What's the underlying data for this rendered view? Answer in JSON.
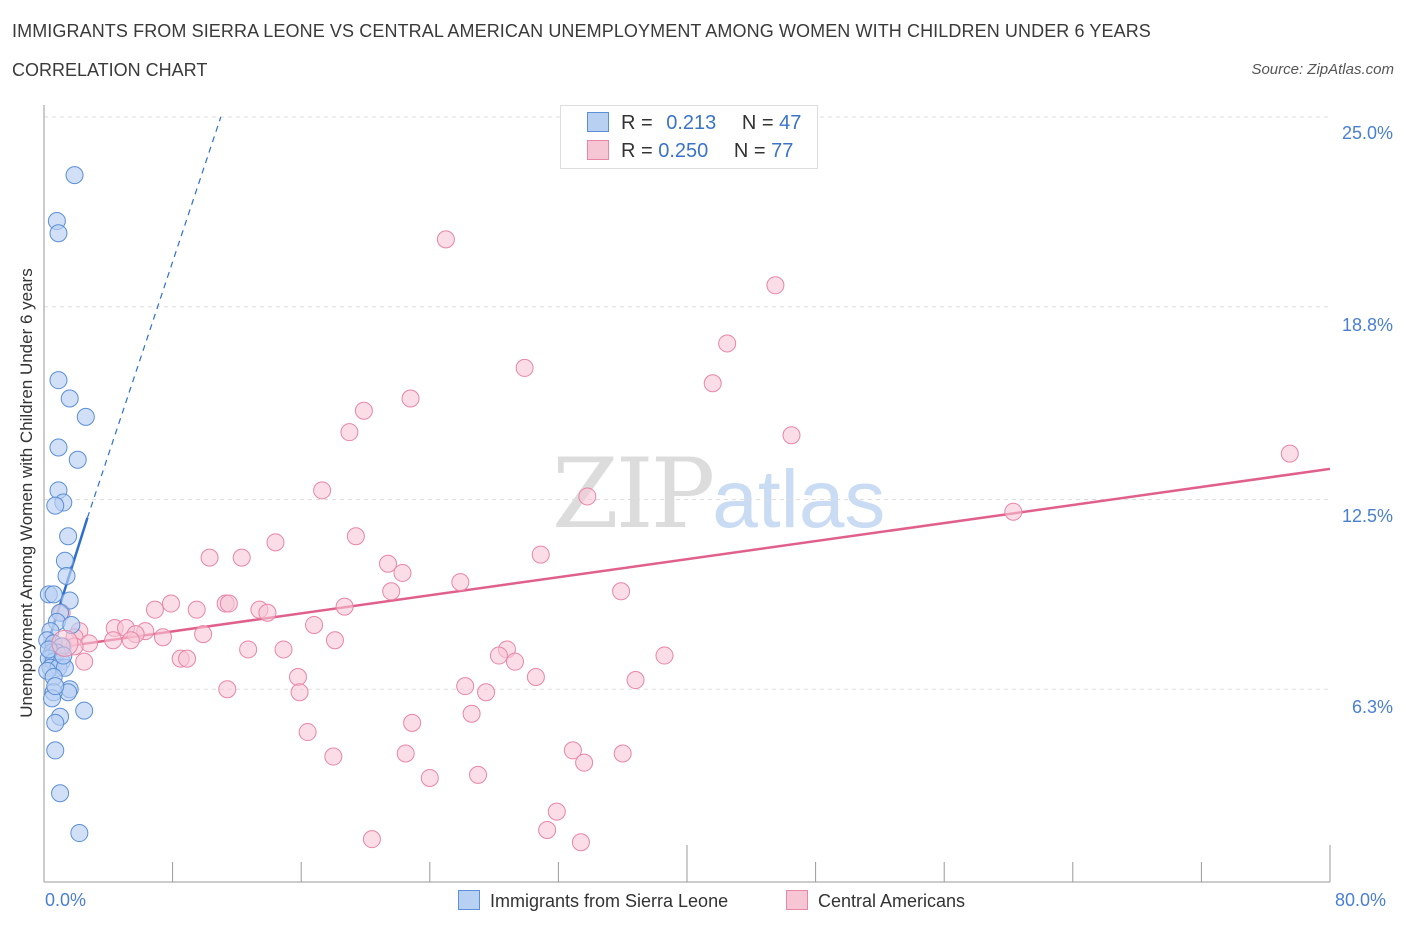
{
  "header": {
    "title": "IMMIGRANTS FROM SIERRA LEONE VS CENTRAL AMERICAN UNEMPLOYMENT AMONG WOMEN WITH CHILDREN UNDER 6 YEARS",
    "subtitle": "CORRELATION CHART",
    "source": "Source: ZipAtlas.com"
  },
  "watermark": {
    "zip": "ZIP",
    "atlas": "atlas"
  },
  "legend_top": {
    "rows": [
      {
        "r_label": "R =",
        "r_value": "0.213",
        "n_label": "N =",
        "n_value": "47"
      },
      {
        "r_label": "R =",
        "r_value": "0.250",
        "n_label": "N =",
        "n_value": "77"
      }
    ]
  },
  "legend_bottom": {
    "items": [
      {
        "label": "Immigrants from Sierra Leone"
      },
      {
        "label": "Central Americans"
      }
    ]
  },
  "colors": {
    "blue_fill": "#b8d0f2",
    "blue_stroke": "#5b8fd6",
    "blue_line": "#2d6fd1",
    "pink_fill": "#f7c6d5",
    "pink_stroke": "#e886a6",
    "pink_line": "#e0608b",
    "grid": "#dddddd",
    "tick_label": "#4a7fd0"
  },
  "chart_data": {
    "type": "scatter",
    "title": "IMMIGRANTS FROM SIERRA LEONE VS CENTRAL AMERICAN UNEMPLOYMENT AMONG WOMEN WITH CHILDREN UNDER 6 YEARS",
    "ylabel": "Unemployment Among Women with Children Under 6 years",
    "xlabel": "",
    "xlim": [
      0,
      80
    ],
    "ylim": [
      0,
      25
    ],
    "x_tick_labels": [
      "0.0%",
      "80.0%"
    ],
    "y_ticks": [
      6.3,
      12.5,
      18.8,
      25.0
    ],
    "y_tick_labels": [
      "6.3%",
      "12.5%",
      "18.8%",
      "25.0%"
    ],
    "grid": true,
    "legend_position": "top-center",
    "series": [
      {
        "name": "Immigrants from Sierra Leone",
        "R": 0.213,
        "N": 47,
        "trend": {
          "x0": 0.0,
          "y0": 7.4,
          "x1": 2.7,
          "y1": 11.9,
          "dashed_to": {
            "x": 11.0,
            "y": 25.0
          }
        },
        "points": [
          [
            1.9,
            23.1
          ],
          [
            0.8,
            21.6
          ],
          [
            0.9,
            21.2
          ],
          [
            0.9,
            16.4
          ],
          [
            1.6,
            15.8
          ],
          [
            2.6,
            15.2
          ],
          [
            0.9,
            14.2
          ],
          [
            2.1,
            13.8
          ],
          [
            0.9,
            12.8
          ],
          [
            1.2,
            12.4
          ],
          [
            0.7,
            12.3
          ],
          [
            1.5,
            11.3
          ],
          [
            1.3,
            10.5
          ],
          [
            1.4,
            10.0
          ],
          [
            0.3,
            9.4
          ],
          [
            0.6,
            9.4
          ],
          [
            1.6,
            9.2
          ],
          [
            1.0,
            8.8
          ],
          [
            0.8,
            8.5
          ],
          [
            1.7,
            8.4
          ],
          [
            0.4,
            8.2
          ],
          [
            0.2,
            7.9
          ],
          [
            0.6,
            7.8
          ],
          [
            1.1,
            7.7
          ],
          [
            0.5,
            7.5
          ],
          [
            0.8,
            7.5
          ],
          [
            0.3,
            7.3
          ],
          [
            0.6,
            7.2
          ],
          [
            1.1,
            7.2
          ],
          [
            0.4,
            7.0
          ],
          [
            0.9,
            7.0
          ],
          [
            1.3,
            7.0
          ],
          [
            0.2,
            6.9
          ],
          [
            0.6,
            6.7
          ],
          [
            1.6,
            6.3
          ],
          [
            1.5,
            6.2
          ],
          [
            0.6,
            6.2
          ],
          [
            0.5,
            6.0
          ],
          [
            2.5,
            5.6
          ],
          [
            1.0,
            5.4
          ],
          [
            0.7,
            5.2
          ],
          [
            0.7,
            4.3
          ],
          [
            1.0,
            2.9
          ],
          [
            2.2,
            1.6
          ],
          [
            0.3,
            7.6
          ],
          [
            0.7,
            6.4
          ],
          [
            1.2,
            7.4
          ]
        ]
      },
      {
        "name": "Central Americans",
        "R": 0.25,
        "N": 77,
        "trend": {
          "x0": 0.0,
          "y0": 7.6,
          "x1": 80.0,
          "y1": 13.5
        },
        "points": [
          [
            25.0,
            21.0
          ],
          [
            45.5,
            19.5
          ],
          [
            42.5,
            17.6
          ],
          [
            29.9,
            16.8
          ],
          [
            41.6,
            16.3
          ],
          [
            22.8,
            15.8
          ],
          [
            19.9,
            15.4
          ],
          [
            19.0,
            14.7
          ],
          [
            46.5,
            14.6
          ],
          [
            77.5,
            14.0
          ],
          [
            17.3,
            12.8
          ],
          [
            33.8,
            12.6
          ],
          [
            60.3,
            12.1
          ],
          [
            19.4,
            11.3
          ],
          [
            14.4,
            11.1
          ],
          [
            30.9,
            10.7
          ],
          [
            10.3,
            10.6
          ],
          [
            12.3,
            10.6
          ],
          [
            21.4,
            10.4
          ],
          [
            22.3,
            10.1
          ],
          [
            25.9,
            9.8
          ],
          [
            35.9,
            9.5
          ],
          [
            21.6,
            9.5
          ],
          [
            7.9,
            9.1
          ],
          [
            11.3,
            9.1
          ],
          [
            11.5,
            9.1
          ],
          [
            18.7,
            9.0
          ],
          [
            6.9,
            8.9
          ],
          [
            9.5,
            8.9
          ],
          [
            13.4,
            8.9
          ],
          [
            13.9,
            8.8
          ],
          [
            1.1,
            8.8
          ],
          [
            16.8,
            8.4
          ],
          [
            4.4,
            8.3
          ],
          [
            5.1,
            8.3
          ],
          [
            2.2,
            8.2
          ],
          [
            6.3,
            8.2
          ],
          [
            5.7,
            8.1
          ],
          [
            9.9,
            8.1
          ],
          [
            1.9,
            8.0
          ],
          [
            7.4,
            8.0
          ],
          [
            4.3,
            7.9
          ],
          [
            5.4,
            7.9
          ],
          [
            18.1,
            7.9
          ],
          [
            2.8,
            7.8
          ],
          [
            1.2,
            7.7
          ],
          [
            1.9,
            7.7
          ],
          [
            12.7,
            7.6
          ],
          [
            14.9,
            7.6
          ],
          [
            28.8,
            7.6
          ],
          [
            28.3,
            7.4
          ],
          [
            38.6,
            7.4
          ],
          [
            8.5,
            7.3
          ],
          [
            8.9,
            7.3
          ],
          [
            2.5,
            7.2
          ],
          [
            29.3,
            7.2
          ],
          [
            15.8,
            6.7
          ],
          [
            30.6,
            6.7
          ],
          [
            36.8,
            6.6
          ],
          [
            26.2,
            6.4
          ],
          [
            11.4,
            6.3
          ],
          [
            15.9,
            6.2
          ],
          [
            27.5,
            6.2
          ],
          [
            26.6,
            5.5
          ],
          [
            22.9,
            5.2
          ],
          [
            16.4,
            4.9
          ],
          [
            32.9,
            4.3
          ],
          [
            22.5,
            4.2
          ],
          [
            36.0,
            4.2
          ],
          [
            33.6,
            3.9
          ],
          [
            27.0,
            3.5
          ],
          [
            24.0,
            3.4
          ],
          [
            31.9,
            2.3
          ],
          [
            31.3,
            1.7
          ],
          [
            20.4,
            1.4
          ],
          [
            33.4,
            1.3
          ],
          [
            18.0,
            4.1
          ]
        ]
      }
    ]
  }
}
